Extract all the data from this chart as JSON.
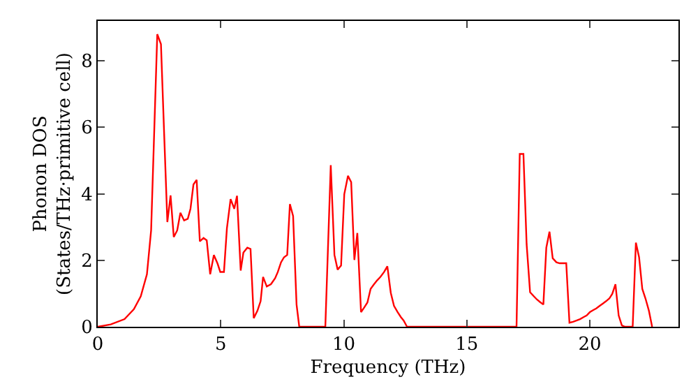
{
  "chart_data": {
    "type": "line",
    "xlabel": "Frequency (THz)",
    "ylabel": "Phonon DOS\n(States/THz·primitive cell)",
    "xlim": [
      0,
      23.6
    ],
    "ylim": [
      0,
      9.2
    ],
    "xticks": [
      0,
      5,
      10,
      15,
      20
    ],
    "yticks": [
      0,
      2,
      4,
      6,
      8
    ],
    "grid": false,
    "marker": "none",
    "line_style": "solid",
    "series": [
      {
        "color": "#ff0000",
        "x": [
          0,
          0.53,
          1.09,
          1.47,
          1.75,
          2.0,
          2.17,
          2.42,
          2.57,
          2.7,
          2.83,
          2.96,
          3.09,
          3.23,
          3.36,
          3.51,
          3.66,
          3.77,
          3.89,
          4.02,
          4.15,
          4.3,
          4.43,
          4.57,
          4.72,
          4.87,
          4.98,
          5.13,
          5.25,
          5.4,
          5.55,
          5.66,
          5.81,
          5.92,
          6.08,
          6.21,
          6.34,
          6.49,
          6.62,
          6.72,
          6.87,
          7.04,
          7.21,
          7.32,
          7.45,
          7.57,
          7.7,
          7.81,
          7.94,
          8.08,
          8.19,
          9.25,
          9.47,
          9.62,
          9.75,
          9.89,
          10.02,
          10.17,
          10.3,
          10.43,
          10.55,
          10.7,
          10.83,
          10.96,
          11.09,
          11.23,
          11.36,
          11.49,
          11.64,
          11.77,
          11.91,
          12.04,
          12.19,
          12.32,
          12.43,
          12.57,
          17.02,
          17.15,
          17.3,
          17.43,
          17.57,
          17.72,
          17.85,
          17.98,
          18.11,
          18.23,
          18.36,
          18.49,
          18.64,
          18.77,
          18.91,
          19.04,
          19.17,
          19.32,
          19.47,
          19.6,
          19.74,
          19.87,
          20.0,
          20.13,
          20.26,
          20.4,
          20.53,
          20.66,
          20.79,
          20.91,
          21.04,
          21.17,
          21.3,
          21.43,
          21.74,
          21.87,
          22.0,
          22.13,
          22.26,
          22.4,
          22.53
        ],
        "values": [
          0,
          0.07,
          0.23,
          0.53,
          0.92,
          1.58,
          2.9,
          8.8,
          8.5,
          5.8,
          3.15,
          3.95,
          2.7,
          2.9,
          3.43,
          3.2,
          3.25,
          3.55,
          4.28,
          4.42,
          2.57,
          2.67,
          2.6,
          1.58,
          2.16,
          1.9,
          1.65,
          1.65,
          2.96,
          3.84,
          3.55,
          3.94,
          1.69,
          2.23,
          2.38,
          2.34,
          0.26,
          0.48,
          0.77,
          1.5,
          1.21,
          1.28,
          1.46,
          1.65,
          1.94,
          2.09,
          2.16,
          3.69,
          3.33,
          0.67,
          0,
          0,
          4.86,
          2.16,
          1.72,
          1.84,
          3.99,
          4.54,
          4.35,
          2.01,
          2.82,
          0.44,
          0.58,
          0.73,
          1.14,
          1.28,
          1.4,
          1.5,
          1.65,
          1.82,
          1.02,
          0.63,
          0.44,
          0.29,
          0.19,
          0,
          0,
          5.2,
          5.2,
          2.48,
          1.04,
          0.92,
          0.82,
          0.74,
          0.67,
          2.38,
          2.86,
          2.06,
          1.94,
          1.91,
          1.91,
          1.91,
          0.12,
          0.15,
          0.19,
          0.23,
          0.29,
          0.34,
          0.44,
          0.5,
          0.55,
          0.63,
          0.7,
          0.77,
          0.85,
          0.99,
          1.28,
          0.34,
          0.04,
          0,
          0,
          2.53,
          2.09,
          1.14,
          0.85,
          0.48,
          0
        ]
      }
    ]
  }
}
